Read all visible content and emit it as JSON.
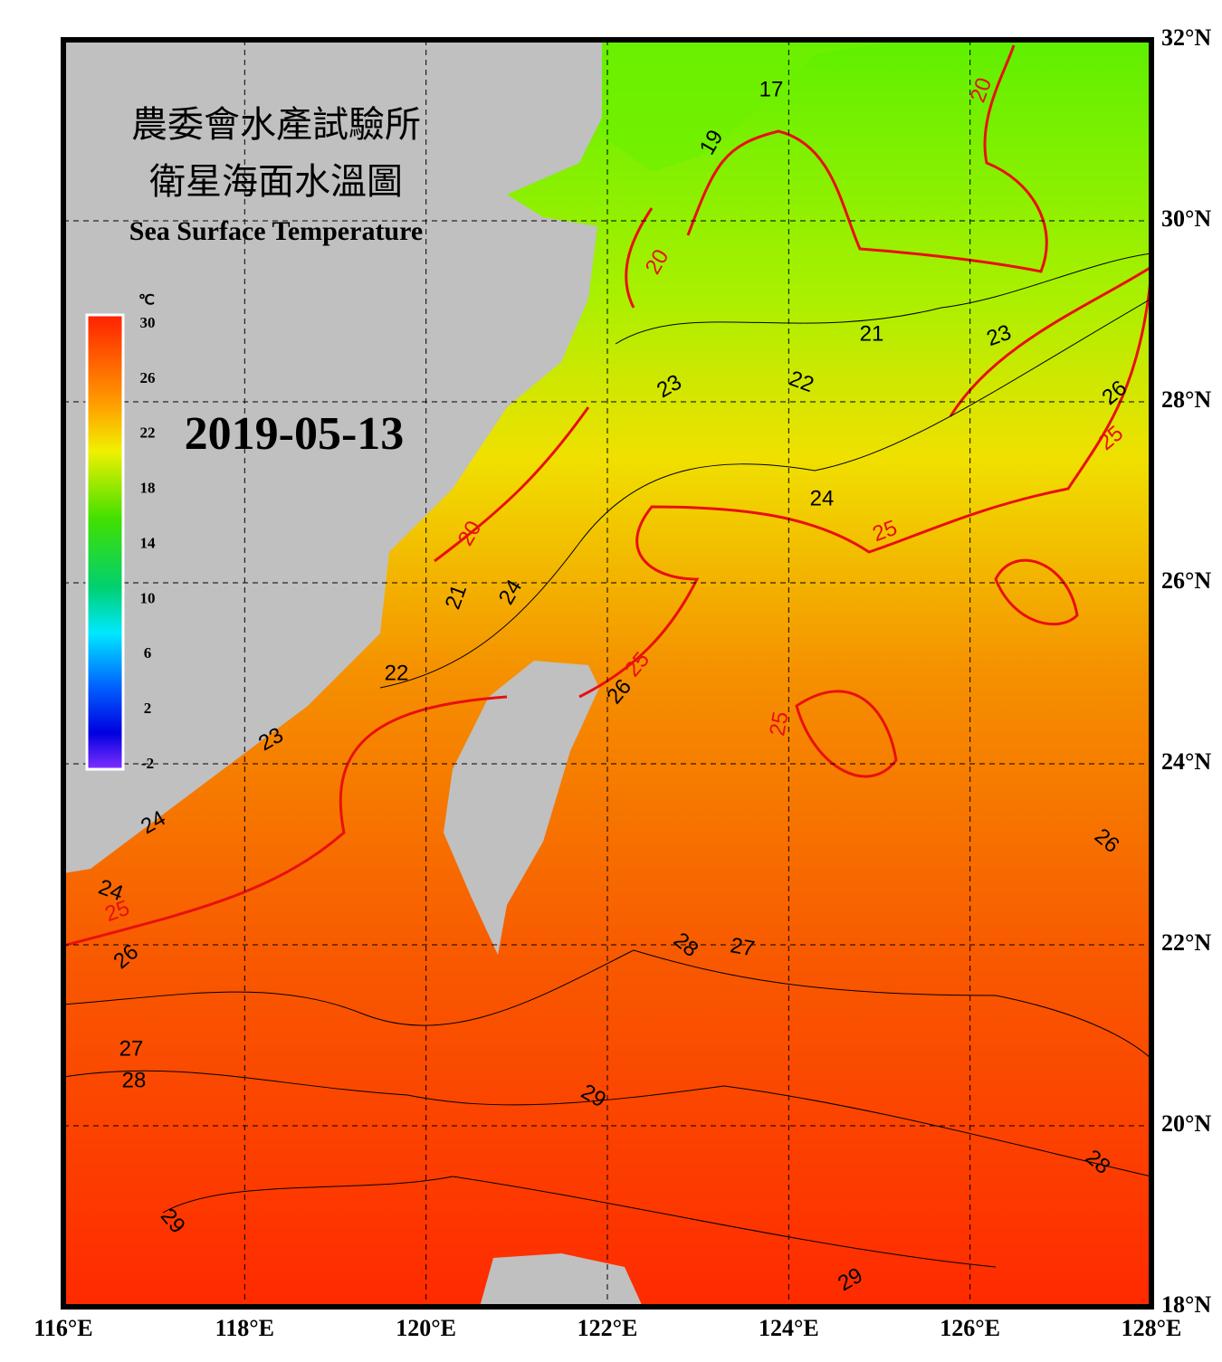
{
  "title": {
    "line1": "農委會水產試驗所",
    "line2": "衛星海面水溫圖",
    "line3": "Sea Surface Temperature"
  },
  "date": "2019-05-13",
  "colorbar": {
    "unit": "℃",
    "ticks": [
      30,
      26,
      22,
      18,
      14,
      10,
      6,
      2,
      -2
    ]
  },
  "lon_ticks": [
    {
      "value": 116,
      "label": "116°E"
    },
    {
      "value": 118,
      "label": "118°E"
    },
    {
      "value": 120,
      "label": "120°E"
    },
    {
      "value": 122,
      "label": "122°E"
    },
    {
      "value": 124,
      "label": "124°E"
    },
    {
      "value": 126,
      "label": "126°E"
    },
    {
      "value": 128,
      "label": "128°E"
    }
  ],
  "lat_ticks": [
    {
      "value": 18,
      "label": "18°N"
    },
    {
      "value": 20,
      "label": "20°N"
    },
    {
      "value": 22,
      "label": "22°N"
    },
    {
      "value": 24,
      "label": "24°N"
    },
    {
      "value": 26,
      "label": "26°N"
    },
    {
      "value": 28,
      "label": "28°N"
    },
    {
      "value": 30,
      "label": "30°N"
    },
    {
      "value": 32,
      "label": "32°N"
    }
  ],
  "contour_labels": [
    17,
    19,
    20,
    20,
    20,
    21,
    21,
    22,
    22,
    23,
    23,
    23,
    24,
    24,
    24,
    24,
    25,
    25,
    25,
    25,
    25,
    26,
    26,
    26,
    26,
    27,
    27,
    28,
    28,
    28,
    29,
    29,
    29
  ]
}
